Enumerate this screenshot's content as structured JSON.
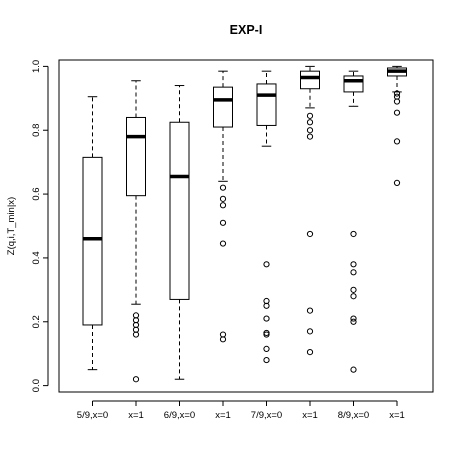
{
  "chart_data": {
    "type": "box",
    "title": "EXP-I",
    "xlabel": "",
    "ylabel": "Z(q,i,T_min|x)",
    "ylim": [
      -0.02,
      1.02
    ],
    "yticks": [
      0.0,
      0.2,
      0.4,
      0.6,
      0.8,
      1.0
    ],
    "ytick_labels": [
      "0.0",
      "0.2",
      "0.4",
      "0.6",
      "0.8",
      "1.0"
    ],
    "grid": false,
    "categories": [
      "5/9,x=0",
      "x=1",
      "6/9,x=0",
      "x=1",
      "7/9,x=0",
      "x=1",
      "8/9,x=0",
      "x=1"
    ],
    "boxes": [
      {
        "whisker_low": 0.05,
        "q1": 0.19,
        "median": 0.46,
        "q3": 0.715,
        "whisker_high": 0.905,
        "outliers": []
      },
      {
        "whisker_low": 0.255,
        "q1": 0.595,
        "median": 0.78,
        "q3": 0.84,
        "whisker_high": 0.955,
        "outliers": [
          0.02,
          0.16,
          0.175,
          0.19,
          0.205,
          0.22
        ]
      },
      {
        "whisker_low": 0.02,
        "q1": 0.27,
        "median": 0.655,
        "q3": 0.825,
        "whisker_high": 0.94,
        "outliers": []
      },
      {
        "whisker_low": 0.64,
        "q1": 0.81,
        "median": 0.895,
        "q3": 0.935,
        "whisker_high": 0.985,
        "outliers": [
          0.145,
          0.16,
          0.445,
          0.51,
          0.565,
          0.585,
          0.62
        ]
      },
      {
        "whisker_low": 0.75,
        "q1": 0.815,
        "median": 0.91,
        "q3": 0.945,
        "whisker_high": 0.985,
        "outliers": [
          0.08,
          0.115,
          0.16,
          0.165,
          0.21,
          0.25,
          0.265,
          0.38
        ]
      },
      {
        "whisker_low": 0.87,
        "q1": 0.93,
        "median": 0.965,
        "q3": 0.985,
        "whisker_high": 1.0,
        "outliers": [
          0.105,
          0.17,
          0.235,
          0.475,
          0.78,
          0.8,
          0.825,
          0.845
        ]
      },
      {
        "whisker_low": 0.875,
        "q1": 0.92,
        "median": 0.955,
        "q3": 0.97,
        "whisker_high": 0.985,
        "outliers": [
          0.05,
          0.2,
          0.21,
          0.28,
          0.3,
          0.355,
          0.38,
          0.475
        ]
      },
      {
        "whisker_low": 0.92,
        "q1": 0.97,
        "median": 0.985,
        "q3": 0.995,
        "whisker_high": 1.0,
        "outliers": [
          0.635,
          0.765,
          0.855,
          0.89,
          0.905,
          0.915
        ]
      }
    ],
    "colors": {
      "box_fill": "#ffffff",
      "stroke": "#000000",
      "median": "#000000",
      "background": "#ffffff"
    }
  }
}
